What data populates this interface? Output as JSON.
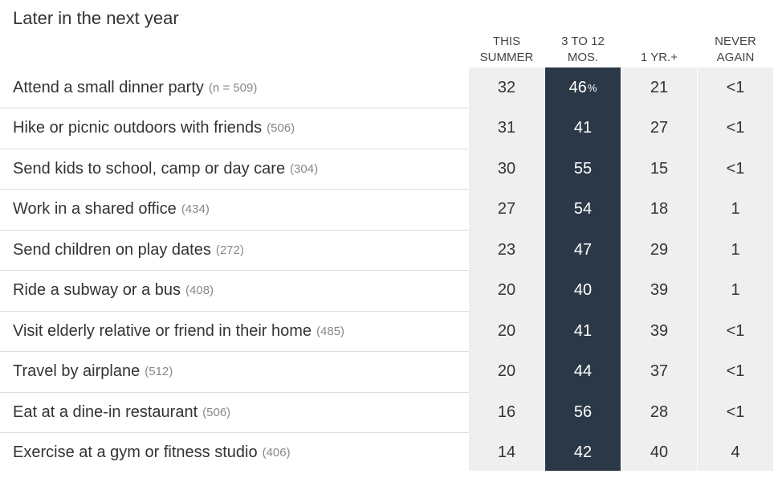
{
  "chart_data": {
    "type": "table",
    "title": "Later in the next year",
    "columns": [
      {
        "lines": [
          "THIS",
          "SUMMER"
        ],
        "highlight": false
      },
      {
        "lines": [
          "3 TO 12",
          "MOS."
        ],
        "highlight": true
      },
      {
        "lines": [
          "1 YR.+"
        ],
        "highlight": false
      },
      {
        "lines": [
          "NEVER",
          "AGAIN"
        ],
        "highlight": false
      }
    ],
    "rows": [
      {
        "activity": "Attend a small dinner party",
        "n": "(n = 509)",
        "values": [
          "32",
          "46",
          "21",
          "<1"
        ]
      },
      {
        "activity": "Hike or picnic outdoors with friends",
        "n": "(506)",
        "values": [
          "31",
          "41",
          "27",
          "<1"
        ]
      },
      {
        "activity": "Send kids to school, camp or day care",
        "n": "(304)",
        "values": [
          "30",
          "55",
          "15",
          "<1"
        ]
      },
      {
        "activity": "Work in a shared office",
        "n": "(434)",
        "values": [
          "27",
          "54",
          "18",
          "1"
        ]
      },
      {
        "activity": "Send children on play dates",
        "n": "(272)",
        "values": [
          "23",
          "47",
          "29",
          "1"
        ]
      },
      {
        "activity": "Ride a subway or a bus",
        "n": "(408)",
        "values": [
          "20",
          "40",
          "39",
          "1"
        ]
      },
      {
        "activity": "Visit elderly relative or friend in their home",
        "n": "(485)",
        "values": [
          "20",
          "41",
          "39",
          "<1"
        ]
      },
      {
        "activity": "Travel by airplane",
        "n": "(512)",
        "values": [
          "20",
          "44",
          "37",
          "<1"
        ]
      },
      {
        "activity": "Eat at a dine-in restaurant",
        "n": "(506)",
        "values": [
          "16",
          "56",
          "28",
          "<1"
        ]
      },
      {
        "activity": "Exercise at a gym or fitness studio",
        "n": "(406)",
        "values": [
          "14",
          "42",
          "40",
          "4"
        ]
      }
    ],
    "percent_symbol": "%",
    "colors": {
      "highlight": "#2b3847",
      "cell": "#efefef",
      "text": "#333333",
      "muted": "#888888"
    }
  }
}
